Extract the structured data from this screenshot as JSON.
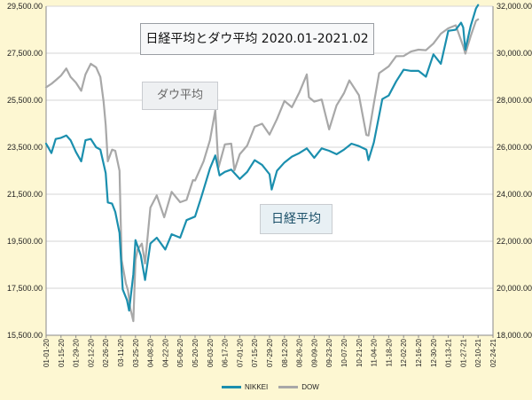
{
  "chart_data": {
    "type": "line",
    "title": "日経平均とダウ平均 2020.01-2021.02",
    "annotations": {
      "dow": "ダウ平均",
      "nikkei": "日経平均"
    },
    "x_ticks": [
      "01-01-20",
      "01-15-20",
      "01-29-20",
      "02-12-20",
      "02-26-20",
      "03-11-20",
      "03-25-20",
      "04-08-20",
      "04-22-20",
      "05-06-20",
      "05-20-20",
      "06-03-20",
      "06-17-20",
      "07-01-20",
      "07-15-20",
      "07-29-20",
      "08-12-20",
      "08-26-20",
      "09-09-20",
      "09-23-20",
      "10-07-20",
      "10-21-20",
      "11-04-20",
      "11-18-20",
      "12-02-20",
      "12-16-20",
      "12-30-20",
      "01-13-21",
      "01-27-21",
      "02-10-21",
      "02-24-21"
    ],
    "y_left": {
      "min": 15500,
      "max": 29500,
      "step": 2000,
      "labels": [
        "15,500.00",
        "17,500.00",
        "19,500.00",
        "21,500.00",
        "23,500.00",
        "25,500.00",
        "27,500.00",
        "29,500.00"
      ]
    },
    "y_right": {
      "min": 18000,
      "max": 32000,
      "step": 2000,
      "labels": [
        "18,000.00",
        "20,000.00",
        "22,000.00",
        "24,000.00",
        "26,000.00",
        "28,000.00",
        "30,000.00",
        "32,000.00"
      ]
    },
    "grid": true,
    "legend": "bottom",
    "series": [
      {
        "name": "NIKKEI",
        "axis": "left",
        "color": "#1b8fae",
        "points": [
          [
            "01-01-20",
            23650
          ],
          [
            "01-06-20",
            23250
          ],
          [
            "01-10-20",
            23850
          ],
          [
            "01-15-20",
            23900
          ],
          [
            "01-20-20",
            24000
          ],
          [
            "01-24-20",
            23800
          ],
          [
            "01-29-20",
            23300
          ],
          [
            "02-03-20",
            22900
          ],
          [
            "02-07-20",
            23800
          ],
          [
            "02-12-20",
            23850
          ],
          [
            "02-17-20",
            23500
          ],
          [
            "02-21-20",
            23400
          ],
          [
            "02-26-20",
            22400
          ],
          [
            "02-28-20",
            21150
          ],
          [
            "03-03-20",
            21100
          ],
          [
            "03-06-20",
            20750
          ],
          [
            "03-10-20",
            19850
          ],
          [
            "03-13-20",
            17450
          ],
          [
            "03-17-20",
            17000
          ],
          [
            "03-19-20",
            16550
          ],
          [
            "03-23-20",
            18100
          ],
          [
            "03-25-20",
            19550
          ],
          [
            "03-30-20",
            18900
          ],
          [
            "04-03-20",
            17850
          ],
          [
            "04-08-20",
            19400
          ],
          [
            "04-14-20",
            19650
          ],
          [
            "04-22-20",
            19150
          ],
          [
            "04-28-20",
            19800
          ],
          [
            "05-06-20",
            19650
          ],
          [
            "05-12-20",
            20400
          ],
          [
            "05-20-20",
            20550
          ],
          [
            "05-26-20",
            21400
          ],
          [
            "06-03-20",
            22600
          ],
          [
            "06-08-20",
            23150
          ],
          [
            "06-12-20",
            22300
          ],
          [
            "06-17-20",
            22450
          ],
          [
            "06-23-20",
            22550
          ],
          [
            "07-01-20",
            22150
          ],
          [
            "07-08-20",
            22450
          ],
          [
            "07-15-20",
            22950
          ],
          [
            "07-22-20",
            22750
          ],
          [
            "07-29-20",
            22350
          ],
          [
            "07-31-20",
            21700
          ],
          [
            "08-05-20",
            22500
          ],
          [
            "08-12-20",
            22850
          ],
          [
            "08-19-20",
            23100
          ],
          [
            "08-26-20",
            23250
          ],
          [
            "09-02-20",
            23450
          ],
          [
            "09-09-20",
            23050
          ],
          [
            "09-16-20",
            23450
          ],
          [
            "09-23-20",
            23350
          ],
          [
            "09-30-20",
            23200
          ],
          [
            "10-07-20",
            23400
          ],
          [
            "10-14-20",
            23650
          ],
          [
            "10-21-20",
            23550
          ],
          [
            "10-28-20",
            23400
          ],
          [
            "10-30-20",
            22950
          ],
          [
            "11-04-20",
            23700
          ],
          [
            "11-09-20",
            24850
          ],
          [
            "11-12-20",
            25550
          ],
          [
            "11-18-20",
            25700
          ],
          [
            "11-25-20",
            26300
          ],
          [
            "12-02-20",
            26800
          ],
          [
            "12-09-20",
            26750
          ],
          [
            "12-16-20",
            26750
          ],
          [
            "12-23-20",
            26500
          ],
          [
            "12-30-20",
            27450
          ],
          [
            "01-06-21",
            27050
          ],
          [
            "01-13-21",
            28450
          ],
          [
            "01-20-21",
            28500
          ],
          [
            "01-25-21",
            28800
          ],
          [
            "01-27-21",
            28600
          ],
          [
            "01-29-21",
            27650
          ],
          [
            "02-03-21",
            28650
          ],
          [
            "02-08-21",
            29400
          ],
          [
            "02-10-21",
            29550
          ]
        ]
      },
      {
        "name": "DOW",
        "axis": "right",
        "color": "#a8a8a8",
        "points": [
          [
            "01-01-20",
            28550
          ],
          [
            "01-06-20",
            28700
          ],
          [
            "01-10-20",
            28850
          ],
          [
            "01-15-20",
            29050
          ],
          [
            "01-20-20",
            29350
          ],
          [
            "01-24-20",
            28990
          ],
          [
            "01-29-20",
            28750
          ],
          [
            "02-03-20",
            28400
          ],
          [
            "02-07-20",
            29100
          ],
          [
            "02-12-20",
            29550
          ],
          [
            "02-17-20",
            29400
          ],
          [
            "02-21-20",
            28990
          ],
          [
            "02-24-20",
            27950
          ],
          [
            "02-26-20",
            26950
          ],
          [
            "02-28-20",
            25400
          ],
          [
            "03-03-20",
            25900
          ],
          [
            "03-06-20",
            25850
          ],
          [
            "03-10-20",
            25000
          ],
          [
            "03-12-20",
            21200
          ],
          [
            "03-16-20",
            20200
          ],
          [
            "03-18-20",
            19900
          ],
          [
            "03-20-20",
            19170
          ],
          [
            "03-23-20",
            18600
          ],
          [
            "03-25-20",
            21200
          ],
          [
            "03-27-20",
            21650
          ],
          [
            "03-31-20",
            21900
          ],
          [
            "04-03-20",
            21050
          ],
          [
            "04-08-20",
            23430
          ],
          [
            "04-14-20",
            23950
          ],
          [
            "04-21-20",
            23020
          ],
          [
            "04-28-20",
            24100
          ],
          [
            "05-06-20",
            23660
          ],
          [
            "05-12-20",
            23760
          ],
          [
            "05-18-20",
            24600
          ],
          [
            "05-20-20",
            24580
          ],
          [
            "05-28-20",
            25400
          ],
          [
            "06-03-20",
            26300
          ],
          [
            "06-08-20",
            27570
          ],
          [
            "06-11-20",
            25130
          ],
          [
            "06-17-20",
            26120
          ],
          [
            "06-23-20",
            26150
          ],
          [
            "06-26-20",
            25020
          ],
          [
            "07-01-20",
            25700
          ],
          [
            "07-08-20",
            26070
          ],
          [
            "07-15-20",
            26870
          ],
          [
            "07-22-20",
            27000
          ],
          [
            "07-29-20",
            26540
          ],
          [
            "08-05-20",
            27200
          ],
          [
            "08-12-20",
            27970
          ],
          [
            "08-19-20",
            27700
          ],
          [
            "08-26-20",
            28330
          ],
          [
            "09-02-20",
            29100
          ],
          [
            "09-04-20",
            28130
          ],
          [
            "09-09-20",
            27940
          ],
          [
            "09-16-20",
            28030
          ],
          [
            "09-23-20",
            26760
          ],
          [
            "09-30-20",
            27780
          ],
          [
            "10-07-20",
            28300
          ],
          [
            "10-12-20",
            28840
          ],
          [
            "10-21-20",
            28210
          ],
          [
            "10-28-20",
            26520
          ],
          [
            "10-30-20",
            26500
          ],
          [
            "11-04-20",
            27850
          ],
          [
            "11-09-20",
            29150
          ],
          [
            "11-18-20",
            29440
          ],
          [
            "11-25-20",
            29870
          ],
          [
            "12-02-20",
            29880
          ],
          [
            "12-09-20",
            30070
          ],
          [
            "12-16-20",
            30150
          ],
          [
            "12-23-20",
            30130
          ],
          [
            "12-30-20",
            30410
          ],
          [
            "01-06-21",
            30830
          ],
          [
            "01-13-21",
            31060
          ],
          [
            "01-20-21",
            31190
          ],
          [
            "01-27-21",
            30300
          ],
          [
            "01-29-21",
            29980
          ],
          [
            "02-03-21",
            30720
          ],
          [
            "02-08-21",
            31380
          ],
          [
            "02-10-21",
            31440
          ]
        ]
      }
    ]
  }
}
